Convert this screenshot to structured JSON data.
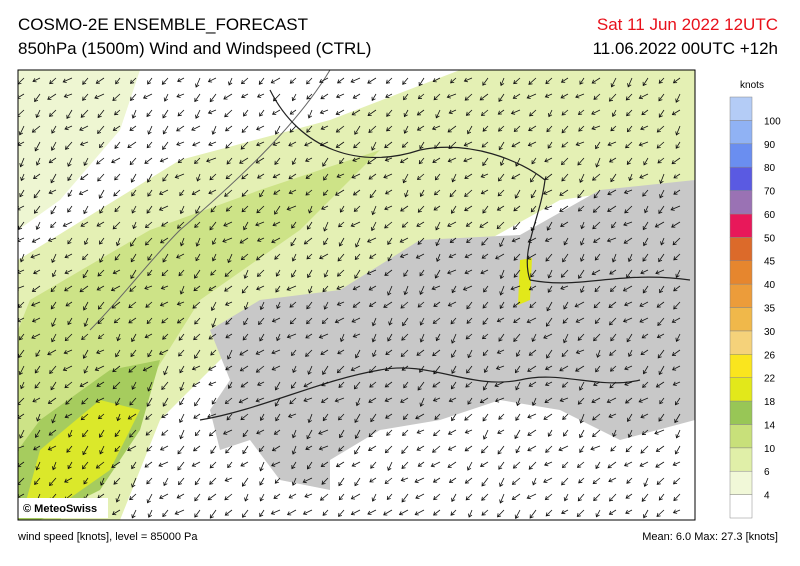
{
  "header": {
    "title": "COSMO-2E ENSEMBLE_FORECAST",
    "subtitle": "850hPa (1500m) Wind and Windspeed (CTRL)",
    "valid_time": "Sat 11 Jun 2022 12UTC",
    "run": "11.06.2022 00UTC +12h"
  },
  "map": {
    "credit": "© MeteoSwiss"
  },
  "colorbar": {
    "unit": "knots",
    "labels": [
      4,
      6,
      10,
      14,
      18,
      22,
      26,
      30,
      35,
      40,
      45,
      50,
      60,
      70,
      80,
      90,
      100
    ],
    "colors": [
      "#ffffff",
      "#f1f8d8",
      "#e0efa8",
      "#c8e07a",
      "#98c656",
      "#e2e81a",
      "#fae51e",
      "#f5d27a",
      "#f0b84a",
      "#ec9c3a",
      "#e6862e",
      "#dc6a2a",
      "#e8185a",
      "#9a72b4",
      "#5a5ae2",
      "#6a8ef0",
      "#90b2f4",
      "#b4ccf6"
    ]
  },
  "footer": {
    "left": "wind speed [knots], level = 85000 Pa",
    "right": "Mean:   6.0 Max:  27.3 [knots]"
  }
}
